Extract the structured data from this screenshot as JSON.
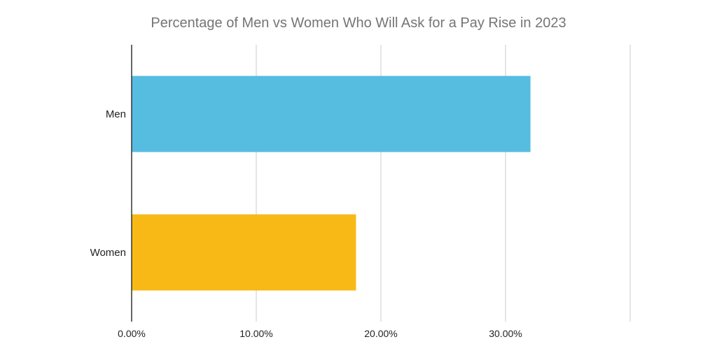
{
  "chart_data": {
    "type": "bar",
    "orientation": "horizontal",
    "title": "Percentage of Men vs Women Who Will Ask for a Pay Rise in 2023",
    "categories": [
      "Men",
      "Women"
    ],
    "values": [
      0.32,
      0.18
    ],
    "colors": [
      "#56bde1",
      "#f8b916"
    ],
    "xlabel": "",
    "ylabel": "",
    "xlim": [
      0,
      0.4
    ],
    "xticks": [
      0,
      0.1,
      0.2,
      0.3,
      0.4
    ],
    "xtick_labels": [
      "0.00%",
      "10.00%",
      "20.00%",
      "30.00%",
      ""
    ],
    "grid": true,
    "legend": "none"
  },
  "style": {
    "title_color": "#757575",
    "grid_color": "#cccccc",
    "axis_color": "#333333",
    "label_color": "#222222"
  }
}
